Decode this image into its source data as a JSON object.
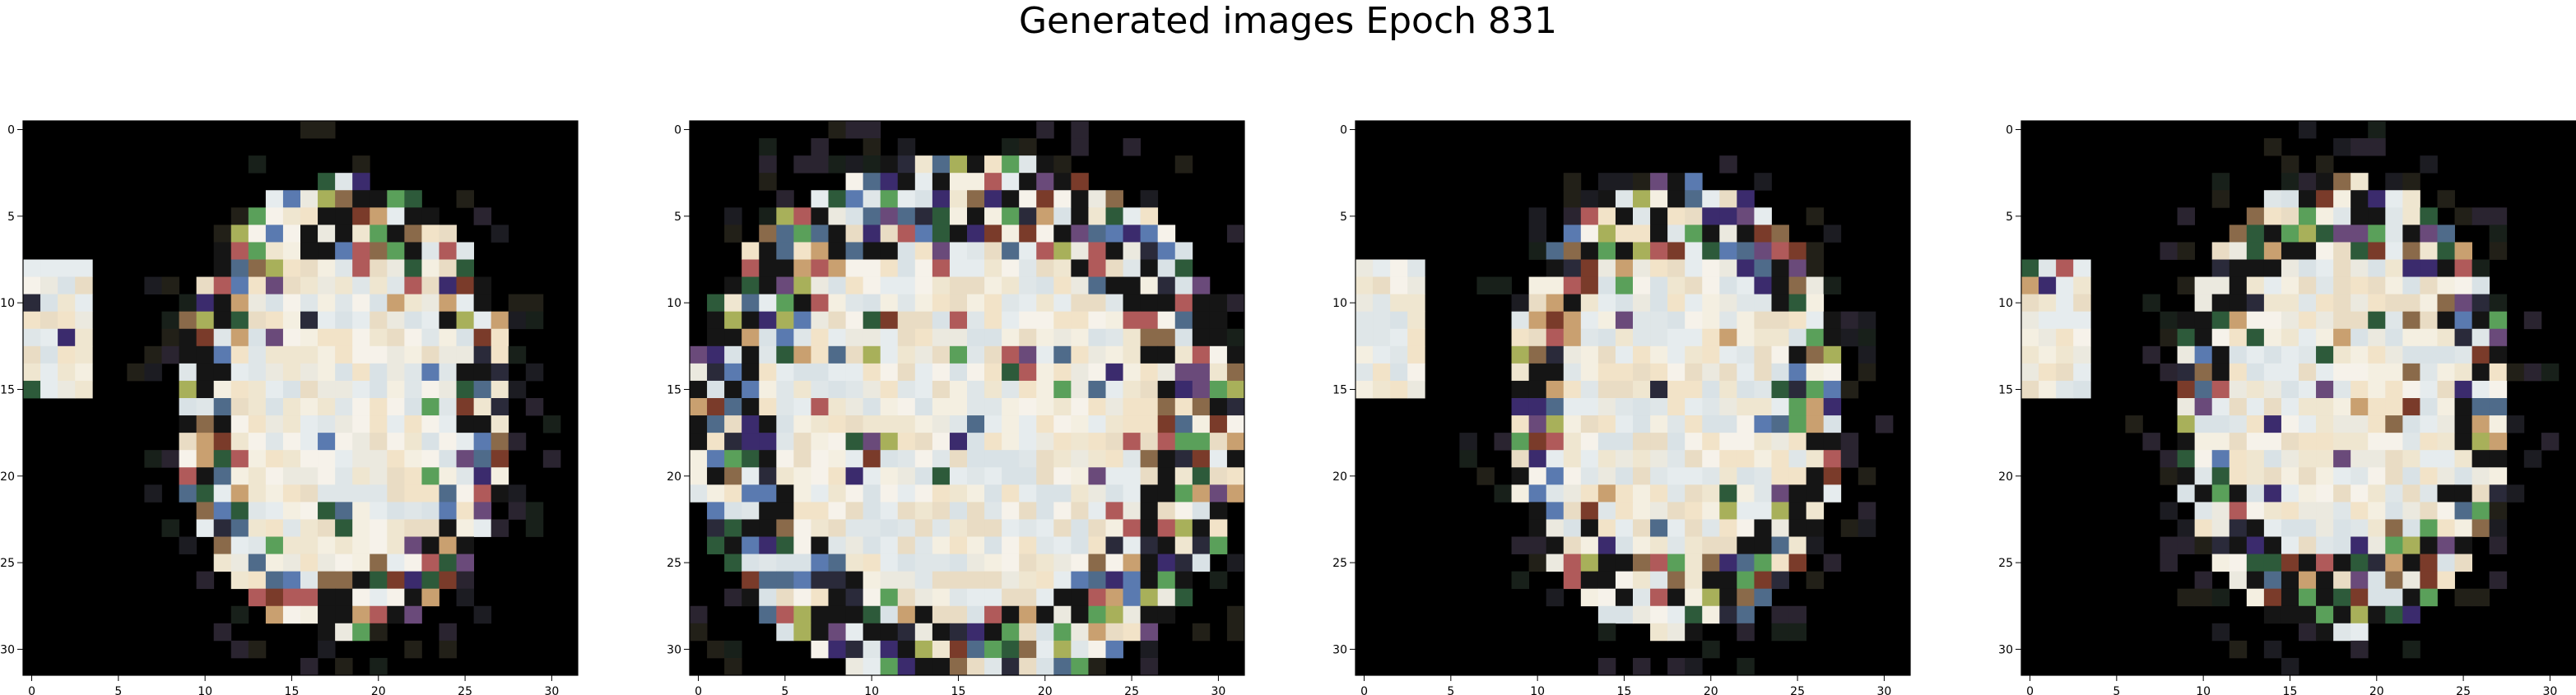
{
  "figure": {
    "title": "Generated images Epoch 831"
  },
  "chart_data": [
    {
      "type": "heatmap",
      "xlim": [
        -0.5,
        31.5
      ],
      "ylim": [
        31.5,
        -0.5
      ],
      "x_ticks": [
        "0",
        "5",
        "10",
        "15",
        "20",
        "25",
        "30"
      ],
      "y_ticks": [
        "0",
        "5",
        "10",
        "15",
        "20",
        "25",
        "30"
      ],
      "grid": false
    },
    {
      "type": "heatmap",
      "xlim": [
        -0.5,
        31.5
      ],
      "ylim": [
        31.5,
        -0.5
      ],
      "x_ticks": [
        "0",
        "5",
        "10",
        "15",
        "20",
        "25",
        "30"
      ],
      "y_ticks": [
        "0",
        "5",
        "10",
        "15",
        "20",
        "25",
        "30"
      ],
      "grid": false
    },
    {
      "type": "heatmap",
      "xlim": [
        -0.5,
        31.5
      ],
      "ylim": [
        31.5,
        -0.5
      ],
      "x_ticks": [
        "0",
        "5",
        "10",
        "15",
        "20",
        "25",
        "30"
      ],
      "y_ticks": [
        "0",
        "5",
        "10",
        "15",
        "20",
        "25",
        "30"
      ],
      "grid": false
    },
    {
      "type": "heatmap",
      "xlim": [
        -0.5,
        31.5
      ],
      "ylim": [
        31.5,
        -0.5
      ],
      "x_ticks": [
        "0",
        "5",
        "10",
        "15",
        "20",
        "25",
        "30"
      ],
      "y_ticks": [
        "0",
        "5",
        "10",
        "15",
        "20",
        "25",
        "30"
      ],
      "grid": false
    }
  ]
}
